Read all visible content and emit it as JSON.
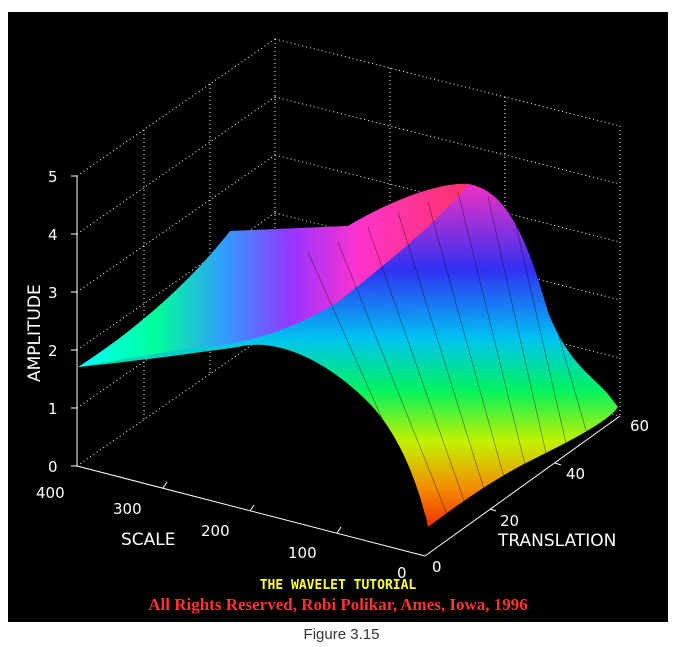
{
  "chart_data": {
    "type": "surface",
    "title": "",
    "xlabel": "SCALE",
    "ylabel": "TRANSLATION",
    "zlabel": "AMPLITUDE",
    "xlim": [
      0,
      400
    ],
    "ylim": [
      0,
      60
    ],
    "zlim": [
      0,
      5
    ],
    "x_ticks": [
      "0",
      "100",
      "200",
      "300",
      "400"
    ],
    "y_ticks": [
      "0",
      "20",
      "40",
      "60"
    ],
    "z_ticks": [
      "0",
      "1",
      "2",
      "3",
      "4",
      "5"
    ],
    "grid": true,
    "surface_profile": {
      "description_values": [
        {
          "scale": 400,
          "amplitude": 1.7
        },
        {
          "scale": 300,
          "amplitude": 2.7
        },
        {
          "scale": 200,
          "amplitude": 4.0
        },
        {
          "scale": 100,
          "amplitude": 2.5
        },
        {
          "scale": 0,
          "amplitude": 0.9
        }
      ],
      "peak_amplitude": 4.9
    }
  },
  "watermark": {
    "title": "THE WAVELET TUTORIAL",
    "copyright": "All Rights Reserved, Robi Polikar, Ames, Iowa, 1996"
  },
  "caption": "Figure 3.15"
}
